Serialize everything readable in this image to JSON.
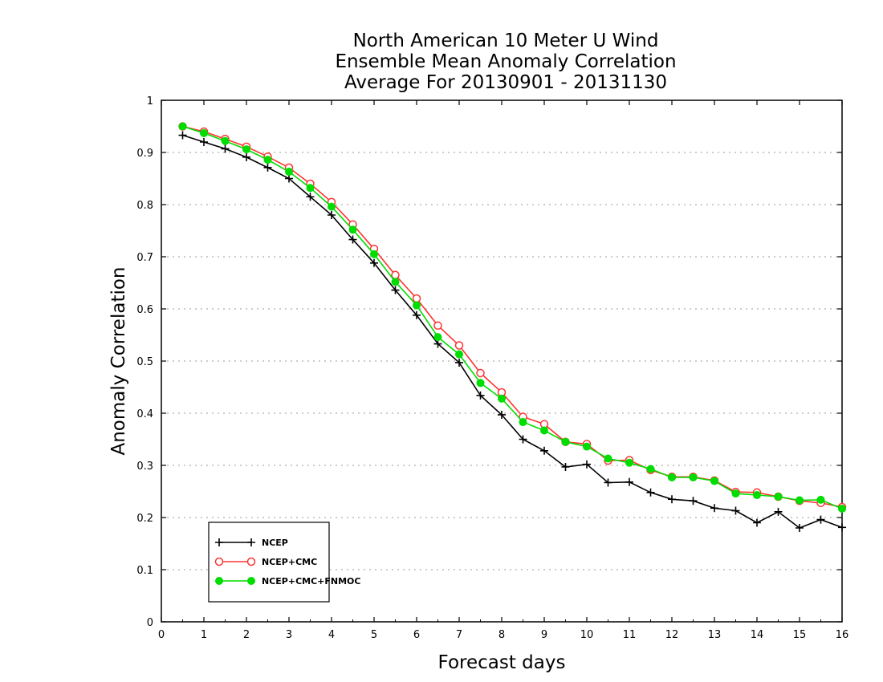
{
  "chart_data": {
    "type": "line",
    "title_lines": [
      "North American 10 Meter U Wind",
      "Ensemble Mean Anomaly Correlation",
      "Average For 20130901 - 20131130"
    ],
    "xlabel": "Forecast days",
    "ylabel": "Anomaly Correlation",
    "xlim": [
      0,
      16
    ],
    "ylim": [
      0,
      1
    ],
    "x_ticks": [
      "0",
      "1",
      "2",
      "3",
      "4",
      "5",
      "6",
      "7",
      "8",
      "9",
      "10",
      "11",
      "12",
      "13",
      "14",
      "15",
      "16"
    ],
    "y_ticks": [
      "0",
      "0.1",
      "0.2",
      "0.3",
      "0.4",
      "0.5",
      "0.6",
      "0.7",
      "0.8",
      "0.9",
      "1"
    ],
    "grid": "horizontal dotted",
    "legend_position": "bottom-left",
    "x": [
      0.5,
      1,
      1.5,
      2,
      2.5,
      3,
      3.5,
      4,
      4.5,
      5,
      5.5,
      6,
      6.5,
      7,
      7.5,
      8,
      8.5,
      9,
      9.5,
      10,
      10.5,
      11,
      11.5,
      12,
      12.5,
      13,
      13.5,
      14,
      14.5,
      15,
      15.5,
      16
    ],
    "series": [
      {
        "name": "NCEP",
        "color": "#000000",
        "marker": "plus",
        "values": [
          0.933,
          0.92,
          0.907,
          0.891,
          0.871,
          0.85,
          0.815,
          0.78,
          0.733,
          0.688,
          0.636,
          0.588,
          0.533,
          0.497,
          0.434,
          0.397,
          0.35,
          0.328,
          0.297,
          0.302,
          0.267,
          0.268,
          0.248,
          0.235,
          0.232,
          0.218,
          0.213,
          0.19,
          0.211,
          0.18,
          0.196,
          0.181
        ]
      },
      {
        "name": "NCEP+CMC",
        "color": "#ff3333",
        "marker": "open-circle",
        "values": [
          0.95,
          0.94,
          0.926,
          0.911,
          0.892,
          0.871,
          0.84,
          0.805,
          0.762,
          0.715,
          0.665,
          0.62,
          0.568,
          0.53,
          0.477,
          0.44,
          0.393,
          0.379,
          0.345,
          0.341,
          0.309,
          0.31,
          0.291,
          0.278,
          0.278,
          0.271,
          0.249,
          0.248,
          0.24,
          0.232,
          0.228,
          0.22
        ]
      },
      {
        "name": "NCEP+CMC+FNMOC",
        "color": "#00dd00",
        "marker": "filled-circle",
        "values": [
          0.95,
          0.937,
          0.922,
          0.906,
          0.886,
          0.863,
          0.832,
          0.796,
          0.752,
          0.705,
          0.652,
          0.607,
          0.546,
          0.513,
          0.458,
          0.428,
          0.383,
          0.367,
          0.345,
          0.336,
          0.313,
          0.305,
          0.293,
          0.277,
          0.277,
          0.27,
          0.246,
          0.243,
          0.24,
          0.233,
          0.234,
          0.217
        ]
      }
    ]
  }
}
